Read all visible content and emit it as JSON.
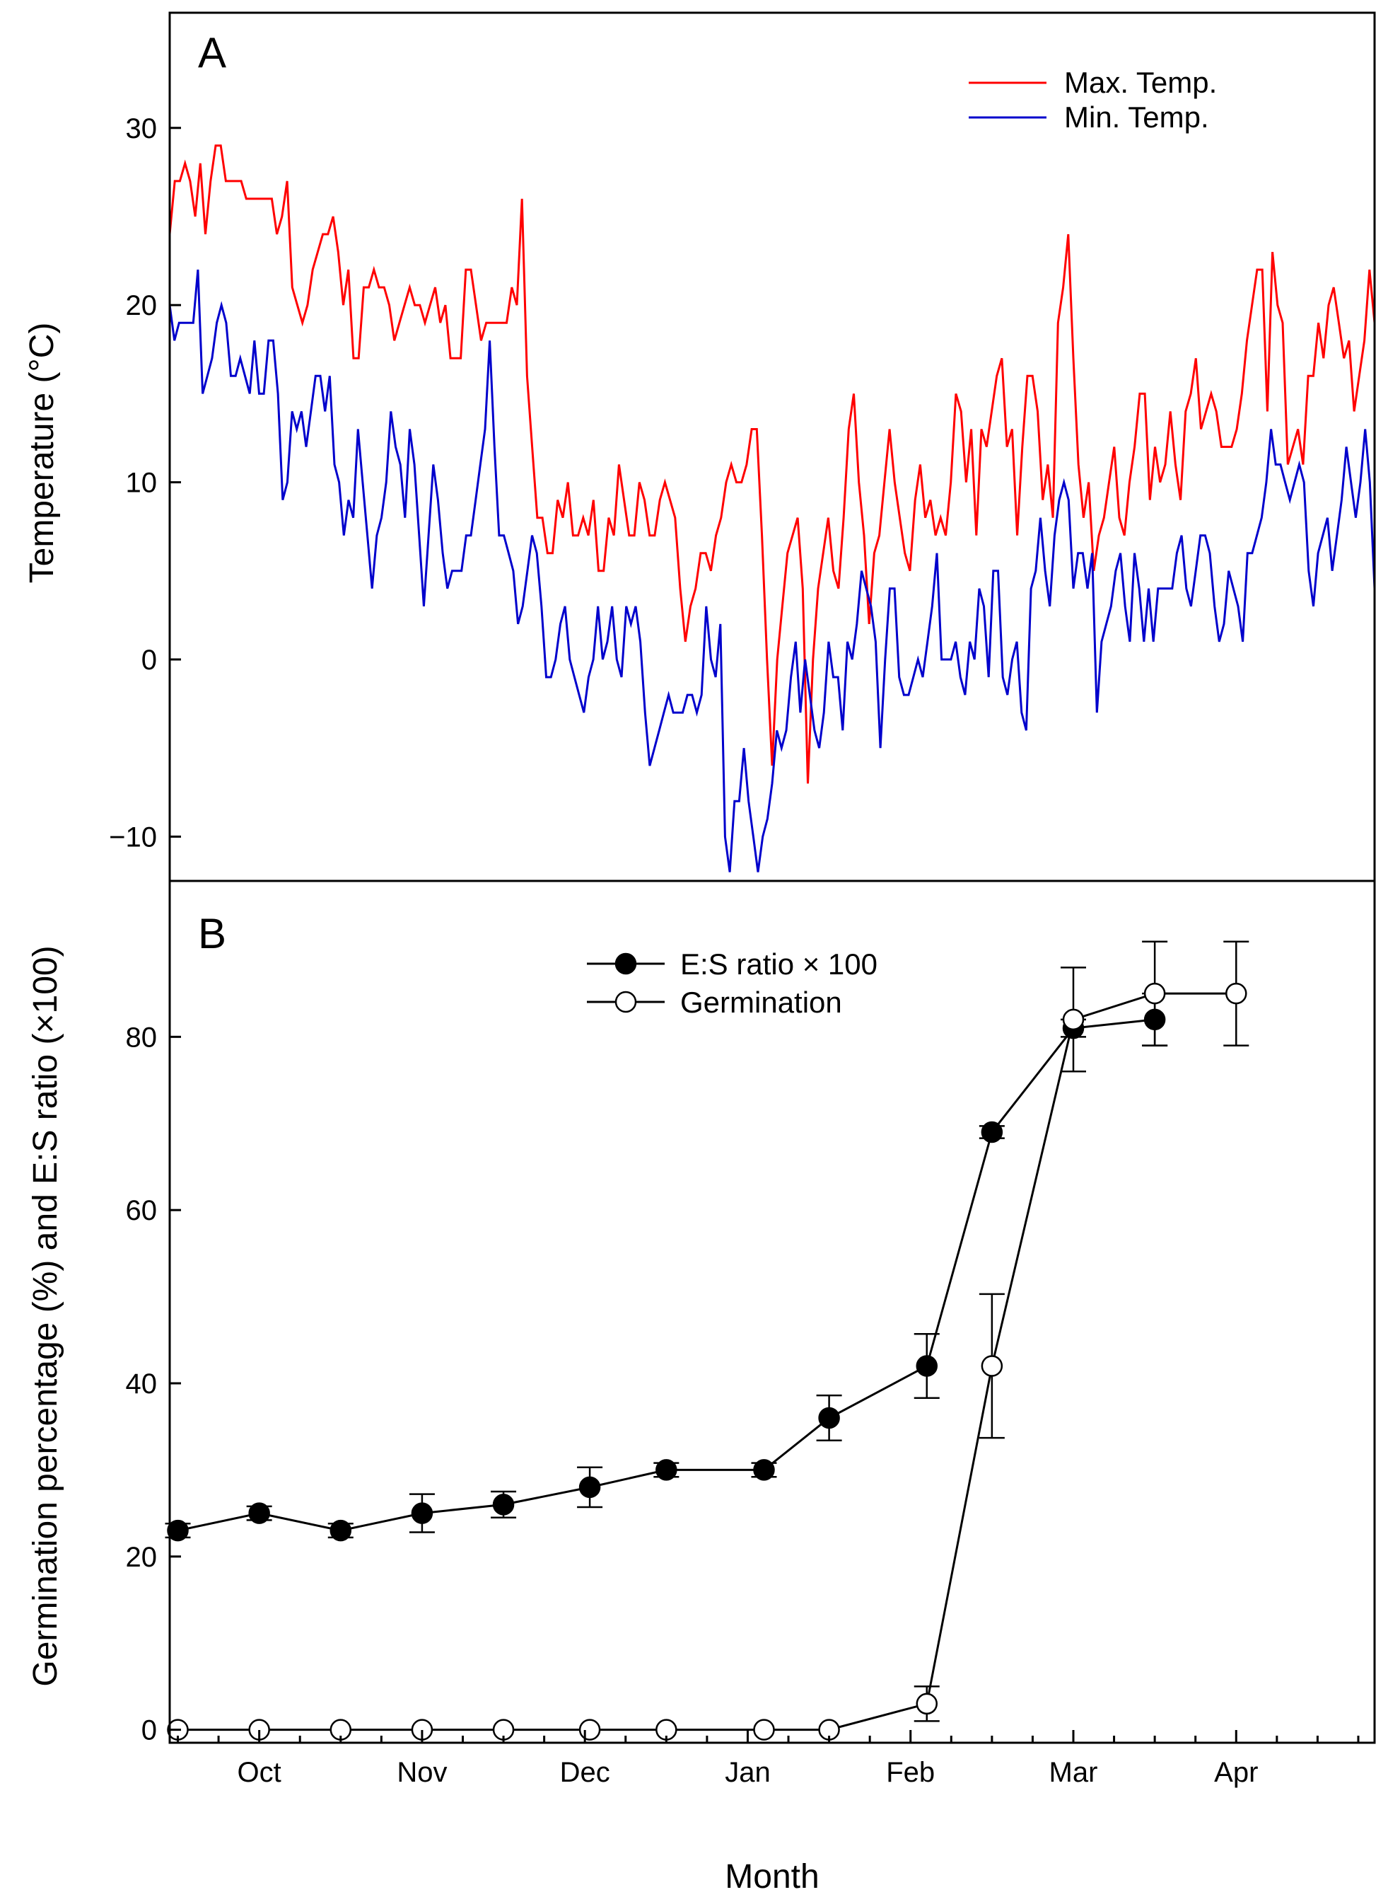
{
  "chart_data": [
    {
      "panel": "A",
      "type": "line",
      "ylabel": "Temperature (°C)",
      "ylim": [
        -12.5,
        36.5
      ],
      "yticks": [
        "30",
        "20",
        "10",
        "0",
        "−10"
      ],
      "ytick_values": [
        30,
        20,
        10,
        0,
        -10
      ],
      "legend": [
        {
          "name": "Max. Temp.",
          "color": "#ff0000"
        },
        {
          "name": "Min. Temp.",
          "color": "#0000cc"
        }
      ],
      "series": [
        {
          "name": "Max. Temp.",
          "color": "#ff0000",
          "values": [
            24,
            27,
            27,
            28,
            27,
            25,
            28,
            24,
            27,
            29,
            29,
            27,
            27,
            27,
            27,
            26,
            26,
            26,
            26,
            26,
            26,
            24,
            25,
            27,
            21,
            20,
            19,
            20,
            22,
            23,
            24,
            24,
            25,
            23,
            20,
            22,
            17,
            17,
            21,
            21,
            22,
            21,
            21,
            20,
            18,
            19,
            20,
            21,
            20,
            20,
            19,
            20,
            21,
            19,
            20,
            17,
            17,
            17,
            22,
            22,
            20,
            18,
            19,
            19,
            19,
            19,
            19,
            21,
            20,
            26,
            16,
            12,
            8,
            8,
            6,
            6,
            9,
            8,
            10,
            7,
            7,
            8,
            7,
            9,
            5,
            5,
            8,
            7,
            11,
            9,
            7,
            7,
            10,
            9,
            7,
            7,
            9,
            10,
            9,
            8,
            4,
            1,
            3,
            4,
            6,
            6,
            5,
            7,
            8,
            10,
            11,
            10,
            10,
            11,
            13,
            13,
            7,
            0,
            -6,
            0,
            3,
            6,
            7,
            8,
            4,
            -7,
            0,
            4,
            6,
            8,
            5,
            4,
            8,
            13,
            15,
            10,
            7,
            2,
            6,
            7,
            10,
            13,
            10,
            8,
            6,
            5,
            9,
            11,
            8,
            9,
            7,
            8,
            7,
            10,
            15,
            14,
            10,
            13,
            7,
            13,
            12,
            14,
            16,
            17,
            12,
            13,
            7,
            12,
            16,
            16,
            14,
            9,
            11,
            8,
            19,
            21,
            24,
            17,
            11,
            8,
            10,
            5,
            7,
            8,
            10,
            12,
            8,
            7,
            10,
            12,
            15,
            15,
            9,
            12,
            10,
            11,
            14,
            11,
            9,
            14,
            15,
            17,
            13,
            14,
            15,
            14,
            12,
            12,
            12,
            13,
            15,
            18,
            20,
            22,
            22,
            14,
            23,
            20,
            19,
            11,
            12,
            13,
            11,
            16,
            16,
            19,
            17,
            20,
            21,
            19,
            17,
            18,
            14,
            16,
            18,
            22,
            19
          ]
        },
        {
          "name": "Min. Temp.",
          "color": "#0000cc",
          "values": [
            20,
            18,
            19,
            19,
            19,
            19,
            22,
            15,
            16,
            17,
            19,
            20,
            19,
            16,
            16,
            17,
            16,
            15,
            18,
            15,
            15,
            18,
            18,
            15,
            9,
            10,
            14,
            13,
            14,
            12,
            14,
            16,
            16,
            14,
            16,
            11,
            10,
            7,
            9,
            8,
            13,
            10,
            7,
            4,
            7,
            8,
            10,
            14,
            12,
            11,
            8,
            13,
            11,
            7,
            3,
            7,
            11,
            9,
            6,
            4,
            5,
            5,
            5,
            7,
            7,
            9,
            11,
            13,
            18,
            12,
            7,
            7,
            6,
            5,
            2,
            3,
            5,
            7,
            6,
            3,
            -1,
            -1,
            0,
            2,
            3,
            0,
            -1,
            -2,
            -3,
            -1,
            0,
            3,
            0,
            1,
            3,
            0,
            -1,
            3,
            2,
            3,
            1,
            -3,
            -6,
            -5,
            -4,
            -3,
            -2,
            -3,
            -3,
            -3,
            -2,
            -2,
            -3,
            -2,
            3,
            0,
            -1,
            2,
            -10,
            -12,
            -8,
            -8,
            -5,
            -8,
            -10,
            -12,
            -10,
            -9,
            -7,
            -4,
            -5,
            -4,
            -1,
            1,
            -3,
            0,
            -2,
            -4,
            -5,
            -3,
            1,
            -1,
            -1,
            -4,
            1,
            0,
            2,
            5,
            4,
            3,
            1,
            -5,
            0,
            4,
            4,
            -1,
            -2,
            -2,
            -1,
            0,
            -1,
            1,
            3,
            6,
            0,
            0,
            0,
            1,
            -1,
            -2,
            1,
            0,
            4,
            3,
            -1,
            5,
            5,
            -1,
            -2,
            0,
            1,
            -3,
            -4,
            4,
            5,
            8,
            5,
            3,
            7,
            9,
            10,
            9,
            4,
            6,
            6,
            4,
            6,
            -3,
            1,
            2,
            3,
            5,
            6,
            3,
            1,
            6,
            4,
            1,
            4,
            1,
            4,
            4,
            4,
            4,
            6,
            7,
            4,
            3,
            5,
            7,
            7,
            6,
            3,
            1,
            2,
            5,
            4,
            3,
            1,
            6,
            6,
            7,
            8,
            10,
            13,
            11,
            11,
            10,
            9,
            10,
            11,
            10,
            5,
            3,
            6,
            7,
            8,
            5,
            7,
            9,
            12,
            10,
            8,
            10,
            13,
            10,
            4
          ]
        }
      ]
    },
    {
      "panel": "B",
      "type": "scatter",
      "xlabel": "Month",
      "ylabel": "Germination percentage (%) and E:S ratio (×100)",
      "ylim": [
        -1.5,
        98
      ],
      "xlim": [
        -0.55,
        6.85
      ],
      "categories": [
        "Oct",
        "Nov",
        "Dec",
        "Jan",
        "Feb",
        "Mar",
        "Apr"
      ],
      "yticks": [
        "0",
        "20",
        "40",
        "60",
        "80"
      ],
      "ytick_values": [
        0,
        20,
        40,
        60,
        80
      ],
      "legend": [
        {
          "name": "E:S ratio × 100",
          "marker": "filled"
        },
        {
          "name": "Germination",
          "marker": "open"
        }
      ],
      "series": [
        {
          "name": "E:S ratio × 100",
          "marker": "filled",
          "points": [
            {
              "x": -0.5,
              "y": 23,
              "err": 0.8
            },
            {
              "x": 0.0,
              "y": 25,
              "err": 0.8
            },
            {
              "x": 0.5,
              "y": 23,
              "err": 0.8
            },
            {
              "x": 1.0,
              "y": 25,
              "err": 2.2
            },
            {
              "x": 1.5,
              "y": 26,
              "err": 1.5
            },
            {
              "x": 2.03,
              "y": 28,
              "err": 2.3
            },
            {
              "x": 2.5,
              "y": 30,
              "err": 0.8
            },
            {
              "x": 3.1,
              "y": 30,
              "err": 0.8
            },
            {
              "x": 3.5,
              "y": 36,
              "err": 2.6
            },
            {
              "x": 4.1,
              "y": 42,
              "err": 3.7
            },
            {
              "x": 4.5,
              "y": 69,
              "err": 0.7
            },
            {
              "x": 5.0,
              "y": 81,
              "err": 1.0
            },
            {
              "x": 5.5,
              "y": 82,
              "err": 3.0
            }
          ]
        },
        {
          "name": "Germination",
          "marker": "open",
          "points": [
            {
              "x": -0.5,
              "y": 0,
              "err": 0
            },
            {
              "x": 0.0,
              "y": 0,
              "err": 0
            },
            {
              "x": 0.5,
              "y": 0,
              "err": 0
            },
            {
              "x": 1.0,
              "y": 0,
              "err": 0
            },
            {
              "x": 1.5,
              "y": 0,
              "err": 0
            },
            {
              "x": 2.03,
              "y": 0,
              "err": 0
            },
            {
              "x": 2.5,
              "y": 0,
              "err": 0
            },
            {
              "x": 3.1,
              "y": 0,
              "err": 0
            },
            {
              "x": 3.5,
              "y": 0,
              "err": 0
            },
            {
              "x": 4.1,
              "y": 3,
              "err": 2.0
            },
            {
              "x": 4.5,
              "y": 42,
              "err": 8.3
            },
            {
              "x": 5.0,
              "y": 82,
              "err": 6.0
            },
            {
              "x": 5.5,
              "y": 85,
              "err": 6.0
            },
            {
              "x": 6.0,
              "y": 85,
              "err": 6.0
            }
          ]
        }
      ]
    }
  ]
}
